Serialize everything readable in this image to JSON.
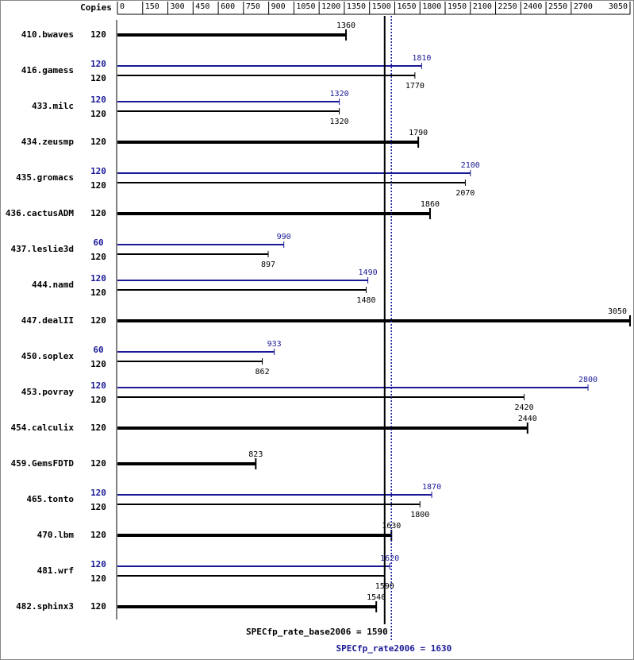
{
  "chart_data": {
    "type": "spec-bar",
    "copies_label": "Copies",
    "xlim": [
      0,
      3050
    ],
    "xticks": [
      0,
      150,
      300,
      450,
      600,
      750,
      900,
      1050,
      1200,
      1350,
      1500,
      1650,
      1800,
      1950,
      2100,
      2250,
      2400,
      2550,
      2700,
      3050
    ],
    "base_color": "#000000",
    "peak_color": "#191996",
    "rows": [
      {
        "name": "410.bwaves",
        "base_copies": 120,
        "base": 1360
      },
      {
        "name": "416.gamess",
        "peak_copies": 120,
        "peak": 1810,
        "base_copies": 120,
        "base": 1770
      },
      {
        "name": "433.milc",
        "peak_copies": 120,
        "peak": 1320,
        "base_copies": 120,
        "base": 1320
      },
      {
        "name": "434.zeusmp",
        "base_copies": 120,
        "base": 1790
      },
      {
        "name": "435.gromacs",
        "peak_copies": 120,
        "peak": 2100,
        "base_copies": 120,
        "base": 2070
      },
      {
        "name": "436.cactusADM",
        "base_copies": 120,
        "base": 1860
      },
      {
        "name": "437.leslie3d",
        "peak_copies": 60,
        "peak": 990,
        "base_copies": 120,
        "base": 897
      },
      {
        "name": "444.namd",
        "peak_copies": 120,
        "peak": 1490,
        "base_copies": 120,
        "base": 1480
      },
      {
        "name": "447.dealII",
        "base_copies": 120,
        "base": 3050
      },
      {
        "name": "450.soplex",
        "peak_copies": 60,
        "peak": 933,
        "base_copies": 120,
        "base": 862
      },
      {
        "name": "453.povray",
        "peak_copies": 120,
        "peak": 2800,
        "base_copies": 120,
        "base": 2420
      },
      {
        "name": "454.calculix",
        "base_copies": 120,
        "base": 2440
      },
      {
        "name": "459.GemsFDTD",
        "base_copies": 120,
        "base": 823
      },
      {
        "name": "465.tonto",
        "peak_copies": 120,
        "peak": 1870,
        "base_copies": 120,
        "base": 1800
      },
      {
        "name": "470.lbm",
        "base_copies": 120,
        "base": 1630
      },
      {
        "name": "481.wrf",
        "peak_copies": 120,
        "peak": 1620,
        "base_copies": 120,
        "base": 1590
      },
      {
        "name": "482.sphinx3",
        "base_copies": 120,
        "base": 1540
      }
    ],
    "base_summary": {
      "label": "SPECfp_rate_base2006 = 1590",
      "value": 1590
    },
    "peak_summary": {
      "label": "SPECfp_rate2006 = 1630",
      "value": 1630
    }
  }
}
